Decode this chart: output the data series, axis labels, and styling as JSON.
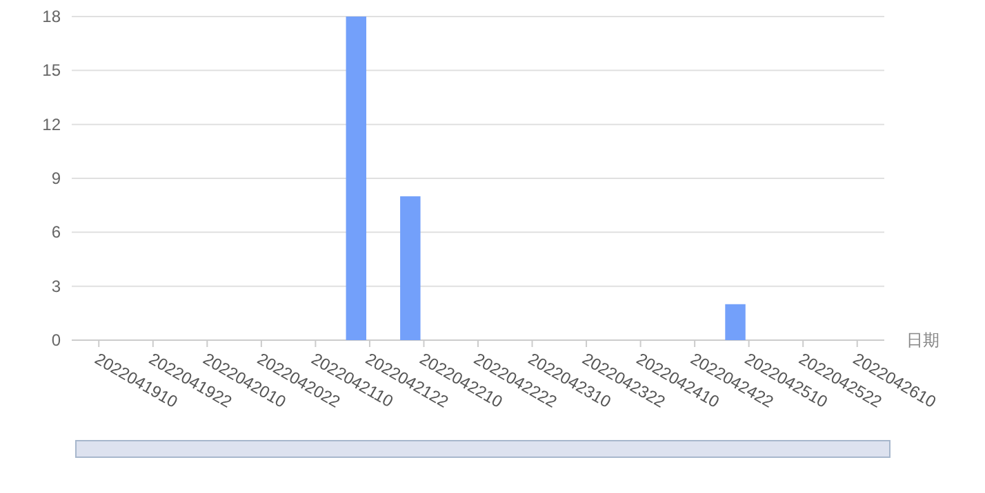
{
  "chart_data": {
    "type": "bar",
    "xlabel": "日期",
    "categories": [
      "2022041910",
      null,
      "2022041922",
      null,
      "2022042010",
      null,
      "2022042022",
      null,
      "2022042110",
      null,
      "2022042122",
      null,
      "2022042210",
      null,
      "2022042222",
      null,
      "2022042310",
      null,
      "2022042322",
      null,
      "2022042410",
      null,
      "2022042422",
      null,
      "2022042510",
      null,
      "2022042522",
      null,
      "2022042610",
      null
    ],
    "values": [
      0,
      0,
      0,
      0,
      0,
      0,
      0,
      0,
      0,
      0,
      18,
      0,
      8,
      0,
      0,
      0,
      0,
      0,
      0,
      0,
      0,
      0,
      0,
      0,
      2,
      0,
      0,
      0,
      0,
      0
    ],
    "color": "#73a0fa",
    "ylim": [
      0,
      18
    ],
    "yticks": [
      0,
      3,
      6,
      9,
      12,
      15,
      18
    ],
    "grid": "y"
  }
}
